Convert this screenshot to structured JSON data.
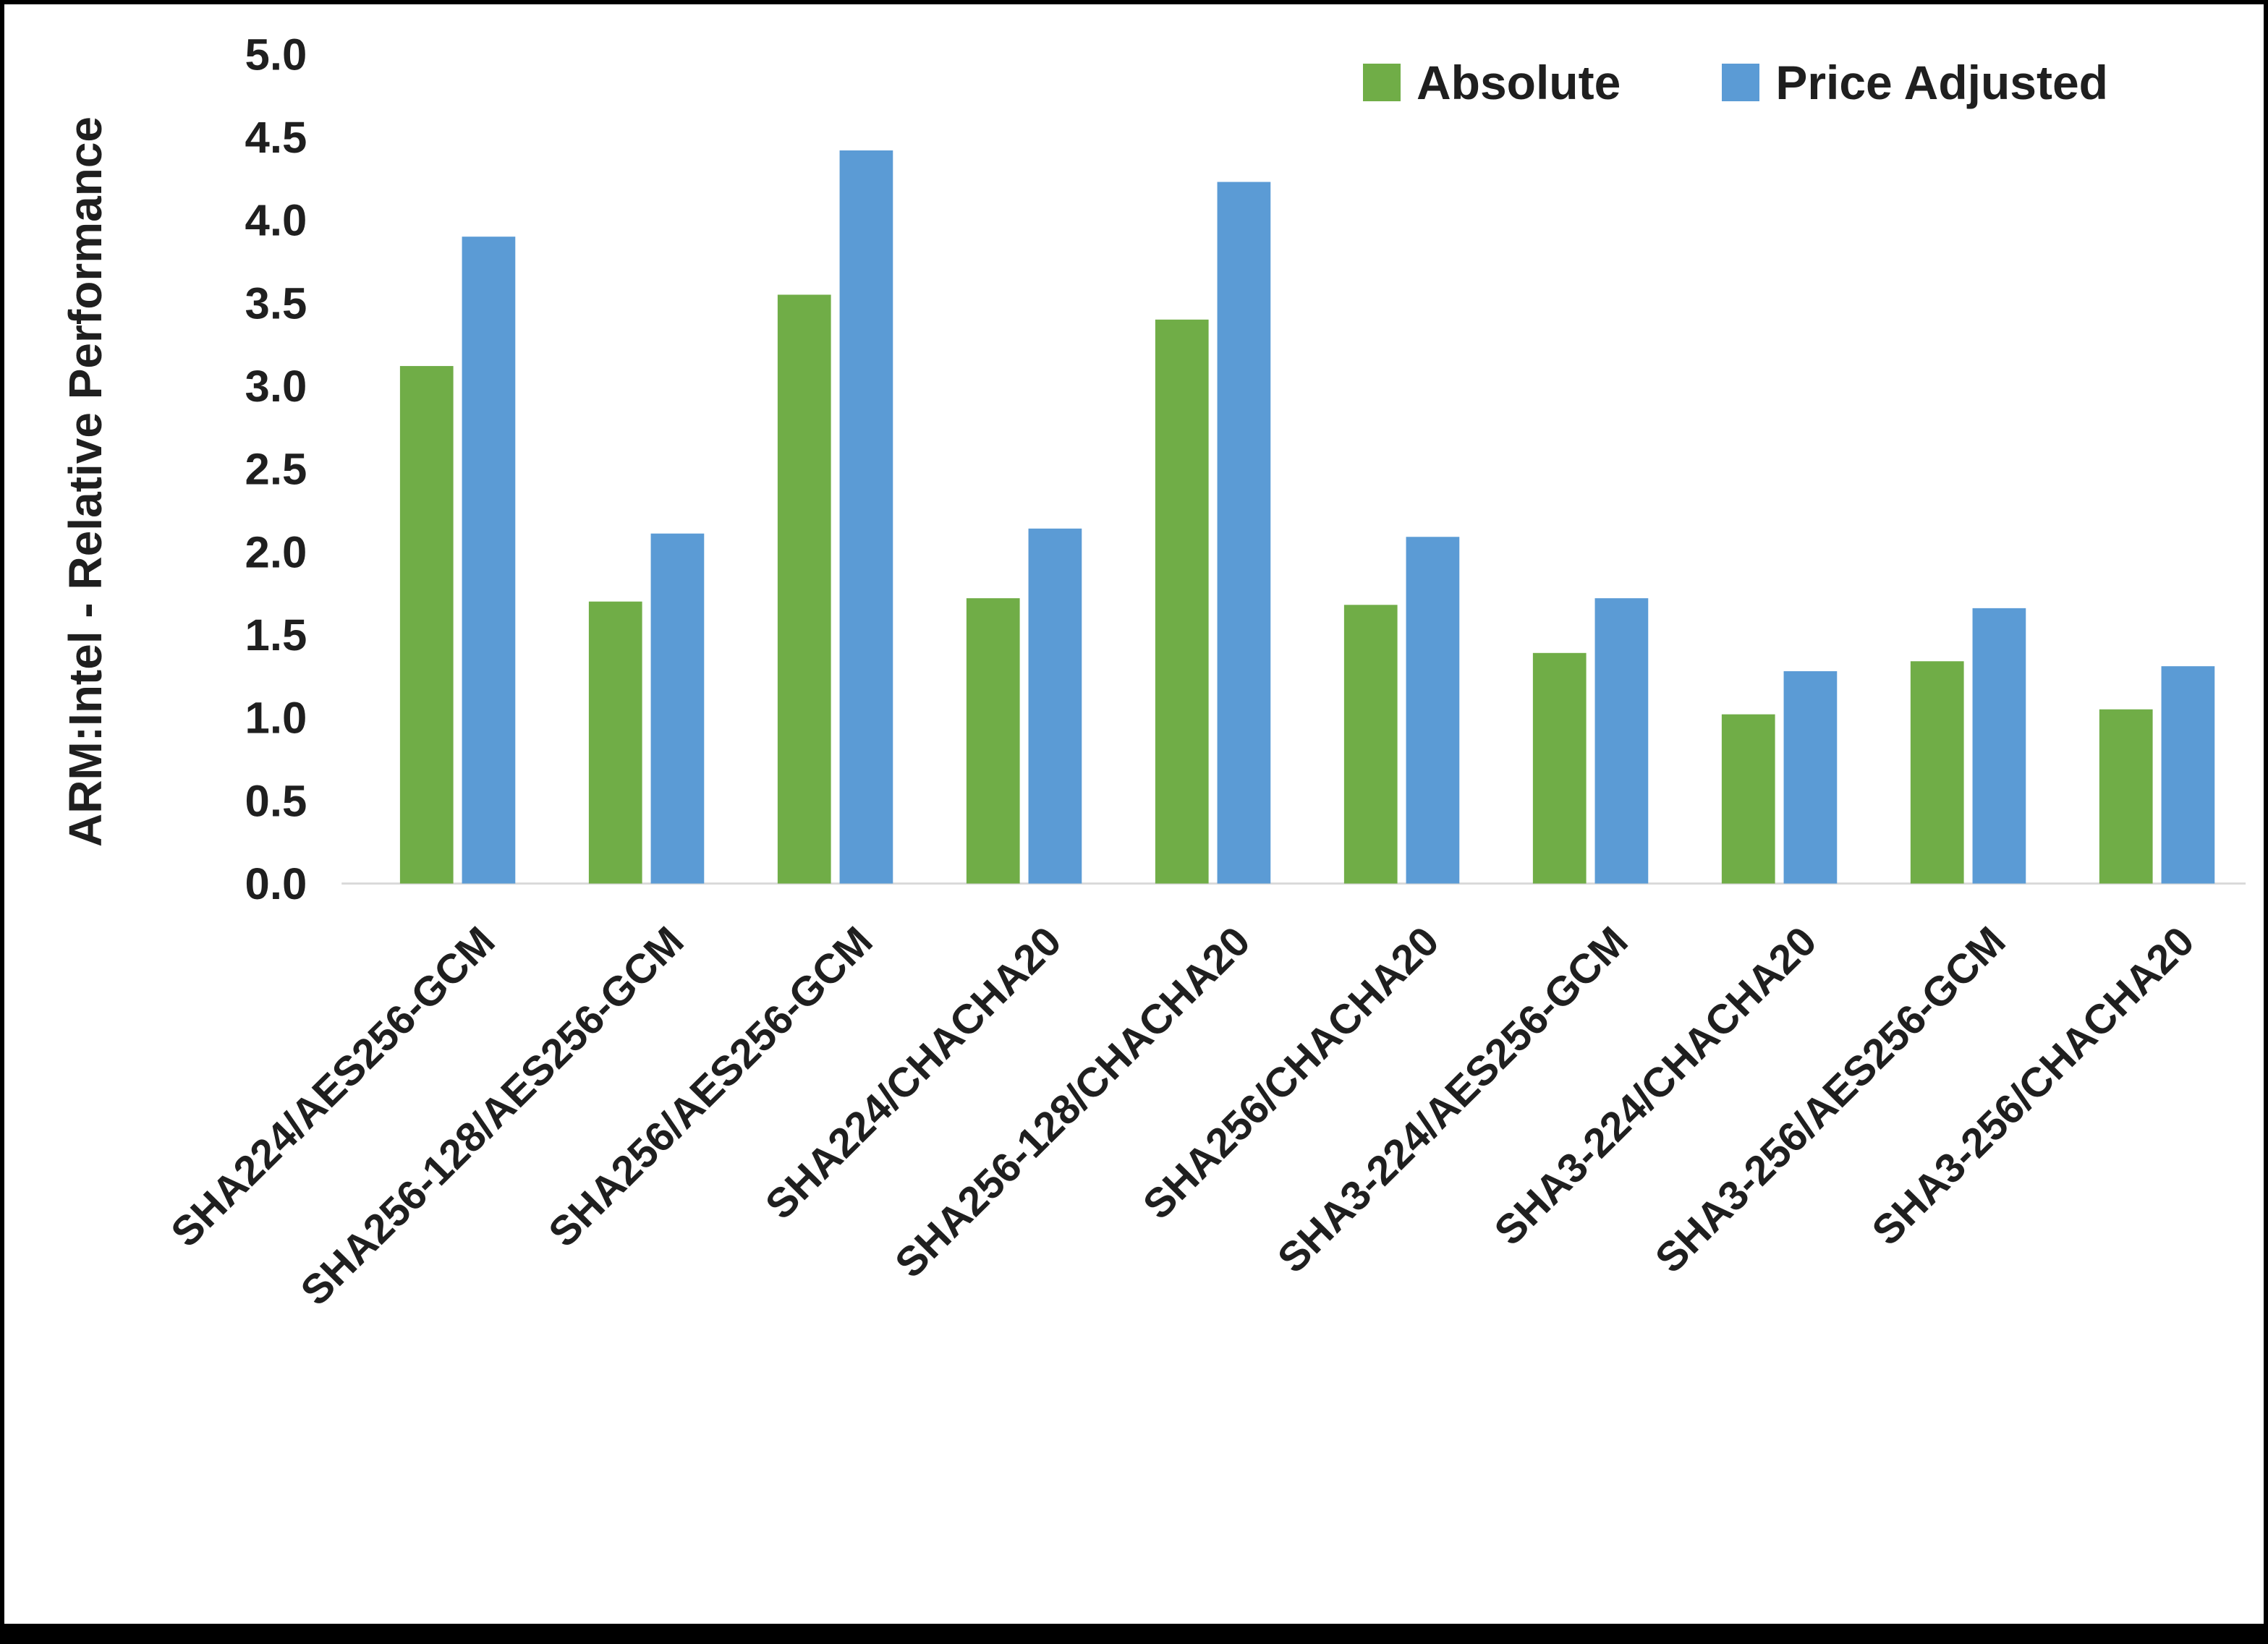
{
  "chart_data": {
    "type": "bar",
    "title": "",
    "xlabel": "",
    "ylabel": "ARM:Intel - Relative Performance",
    "ylim": [
      0,
      5
    ],
    "ytick_step": 0.5,
    "yticks": [
      "0.0",
      "0.5",
      "1.0",
      "1.5",
      "2.0",
      "2.5",
      "3.0",
      "3.5",
      "4.0",
      "4.5",
      "5.0"
    ],
    "grid": false,
    "legend_position": "top-right",
    "categories": [
      "SHA224/AES256-GCM",
      "SHA256-128/AES256-GCM",
      "SHA256/AES256-GCM",
      "SHA224/CHACHA20",
      "SHA256-128/CHACHA20",
      "SHA256/CHACHA20",
      "SHA3-224/AES256-GCM",
      "SHA3-224/CHACHA20",
      "SHA3-256/AES256-GCM",
      "SHA3-256/CHACHA20"
    ],
    "series": [
      {
        "name": "Absolute",
        "color": "#70AD47",
        "values": [
          3.12,
          1.7,
          3.55,
          1.72,
          3.4,
          1.68,
          1.39,
          1.02,
          1.34,
          1.05
        ]
      },
      {
        "name": "Price Adjusted",
        "color": "#5B9BD5",
        "values": [
          3.9,
          2.11,
          4.42,
          2.14,
          4.23,
          2.09,
          1.72,
          1.28,
          1.66,
          1.31
        ]
      }
    ],
    "axis_line_color": "#d9d9d9",
    "text_color": "#1f1f1f"
  }
}
